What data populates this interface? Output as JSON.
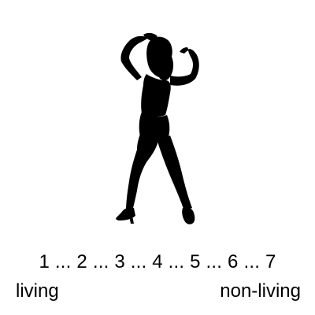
{
  "stimulus": {
    "icon": "dancing-woman-silhouette-icon",
    "fill_color": "#000000"
  },
  "scale": {
    "points": [
      "1",
      "2",
      "3",
      "4",
      "5",
      "6",
      "7"
    ],
    "separator": " ... "
  },
  "anchors": {
    "left_label": "living",
    "right_label": "non-living"
  }
}
